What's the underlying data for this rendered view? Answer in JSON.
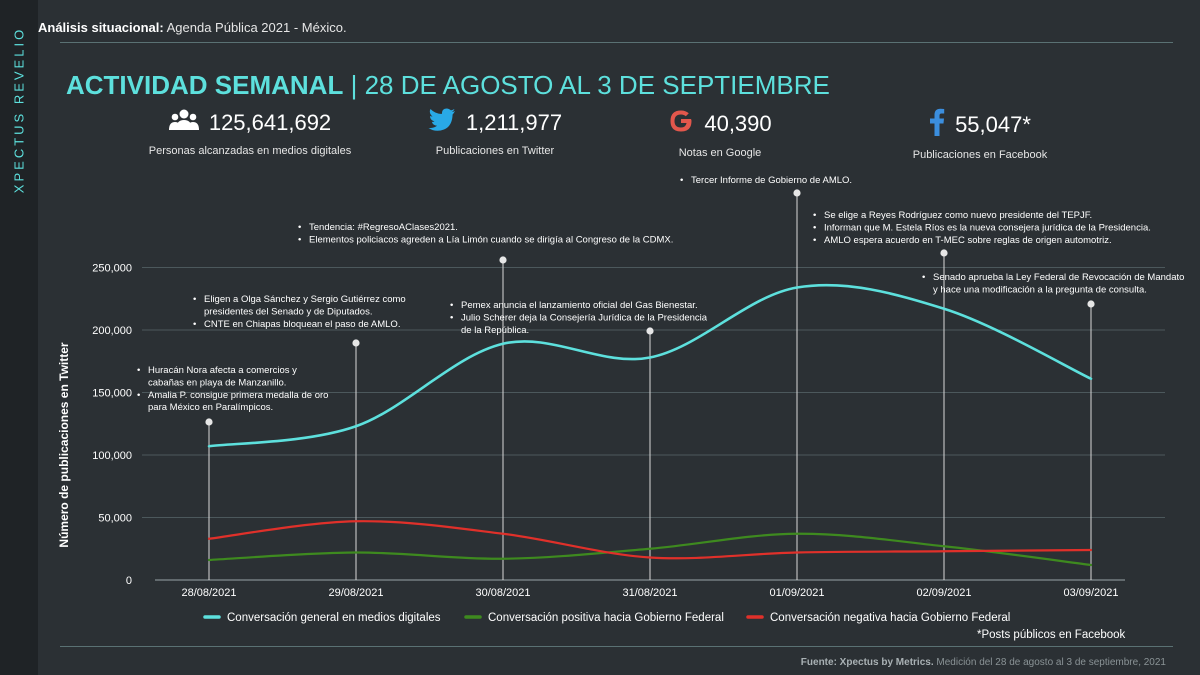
{
  "brand": "XPECTUS REVELIO",
  "header": {
    "label": "Análisis situacional:",
    "text": "Agenda Pública 2021 - México."
  },
  "title": {
    "main": "ACTIVIDAD SEMANAL",
    "sep": "|",
    "range": "28 DE AGOSTO AL 3 DE SEPTIEMBRE"
  },
  "stats": [
    {
      "icon": "people-icon",
      "value": "125,641,692",
      "label": "Personas alcanzadas en medios digitales"
    },
    {
      "icon": "twitter-icon",
      "value": "1,211,977",
      "label": "Publicaciones en Twitter"
    },
    {
      "icon": "google-icon",
      "value": "40,390",
      "label": "Notas en Google"
    },
    {
      "icon": "facebook-icon",
      "value": "55,047*",
      "label": "Publicaciones en Facebook"
    }
  ],
  "colors": {
    "general": "#5de0dd",
    "positive": "#3e8a1f",
    "negative": "#e0302a",
    "accent": "#5de0dd"
  },
  "chart_data": {
    "type": "line",
    "ylabel": "Número de publicaciones en Twitter",
    "ylim": [
      0,
      250000
    ],
    "yticks": [
      0,
      50000,
      100000,
      150000,
      200000,
      250000
    ],
    "ytick_labels": [
      "0",
      "50,000",
      "100,000",
      "150,000",
      "200,000",
      "250,000"
    ],
    "categories": [
      "28/08/2021",
      "29/08/2021",
      "30/08/2021",
      "31/08/2021",
      "01/09/2021",
      "02/09/2021",
      "03/09/2021"
    ],
    "grid": true,
    "legend": "bottom",
    "series": [
      {
        "name": "Conversación general en medios digitales",
        "values": [
          107000,
          123000,
          189000,
          178000,
          234000,
          217000,
          161000
        ]
      },
      {
        "name": "Conversación positiva hacia Gobierno Federal",
        "values": [
          16000,
          22000,
          17000,
          25000,
          37000,
          27000,
          12000
        ]
      },
      {
        "name": "Conversación negativa hacia Gobierno Federal",
        "values": [
          33000,
          47000,
          37000,
          18000,
          22000,
          23000,
          24000
        ]
      }
    ],
    "annotations": [
      {
        "category": "28/08/2021",
        "lines": [
          [
            "•",
            "Huracán Nora afecta a comercios y"
          ],
          [
            "",
            "cabañas en playa de Manzanillo."
          ],
          [
            "•",
            "Amalia P. consigue primera medalla de oro"
          ],
          [
            "",
            "para México en  Paralímpicos."
          ]
        ]
      },
      {
        "category": "29/08/2021",
        "lines": [
          [
            "•",
            "Eligen a Olga Sánchez y Sergio Gutiérrez como"
          ],
          [
            "",
            "presidentes del Senado y de Diputados."
          ],
          [
            "•",
            "CNTE en Chiapas bloquean  el paso de AMLO."
          ]
        ]
      },
      {
        "category": "30/08/2021",
        "lines": [
          [
            "•",
            "Tendencia:  #RegresoAClases2021."
          ],
          [
            "•",
            "Elementos policiacos agreden a Lía Limón cuando se dirigía al Congreso de la CDMX."
          ]
        ]
      },
      {
        "category": "31/08/2021",
        "lines": [
          [
            "•",
            "Pemex anuncia el lanzamiento oficial del Gas Bienestar."
          ],
          [
            "•",
            "Julio Scherer deja la Consejería Jurídica de la Presidencia"
          ],
          [
            "",
            "de la República."
          ]
        ]
      },
      {
        "category": "01/09/2021",
        "lines": [
          [
            "•",
            "Tercer Informe de Gobierno de AMLO."
          ]
        ]
      },
      {
        "category": "02/09/2021",
        "lines": [
          [
            "•",
            "Se elige a Reyes Rodríguez como nuevo presidente del TEPJF."
          ],
          [
            "•",
            "Informan que M. Estela Ríos es la nueva consejera jurídica de la Presidencia."
          ],
          [
            "•",
            "AMLO espera acuerdo en T-MEC sobre reglas de origen automotriz."
          ]
        ]
      },
      {
        "category": "03/09/2021",
        "lines": [
          [
            "•",
            "Senado aprueba la Ley Federal de Revocación de Mandato"
          ],
          [
            "",
            "y hace una modificación a la pregunta de consulta."
          ]
        ]
      }
    ]
  },
  "fb_note": "*Posts públicos en Facebook",
  "footer": {
    "source_label": "Fuente: Xpectus by Metrics.",
    "source_text": "Medición del 28 de agosto al 3 de septiembre, 2021"
  }
}
